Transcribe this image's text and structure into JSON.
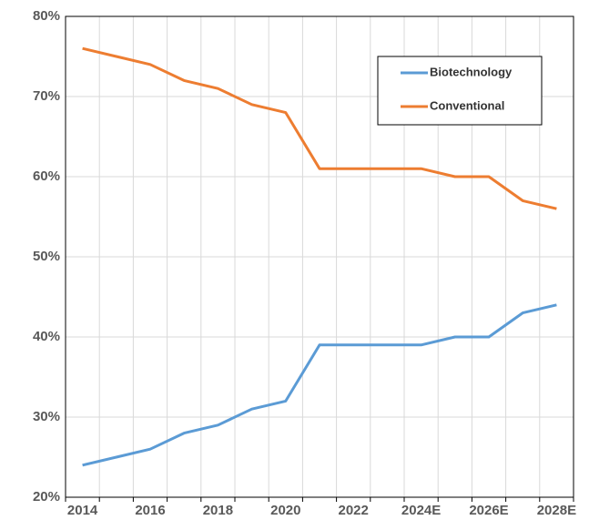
{
  "chart_data": {
    "type": "line",
    "categories": [
      "2014",
      null,
      "2016",
      null,
      "2018",
      null,
      "2020",
      null,
      "2022",
      null,
      "2024E",
      null,
      "2026E",
      null,
      "2028E"
    ],
    "series": [
      {
        "name": "Biotechnology",
        "color": "#5b9bd5",
        "values": [
          24,
          25,
          26,
          28,
          29,
          31,
          32,
          39,
          39,
          39,
          39,
          40,
          40,
          43,
          44
        ]
      },
      {
        "name": "Conventional",
        "color": "#ed7d31",
        "values": [
          76,
          75,
          74,
          72,
          71,
          69,
          68,
          61,
          61,
          61,
          61,
          60,
          60,
          57,
          56
        ]
      }
    ],
    "ylim": [
      20,
      80
    ],
    "yticks": [
      {
        "value": 20,
        "label": "20%"
      },
      {
        "value": 30,
        "label": "30%"
      },
      {
        "value": 40,
        "label": "40%"
      },
      {
        "value": 50,
        "label": "50%"
      },
      {
        "value": 60,
        "label": "60%"
      },
      {
        "value": 70,
        "label": "70%"
      },
      {
        "value": 80,
        "label": "80%"
      }
    ],
    "grid": true,
    "legend": "upper right"
  }
}
